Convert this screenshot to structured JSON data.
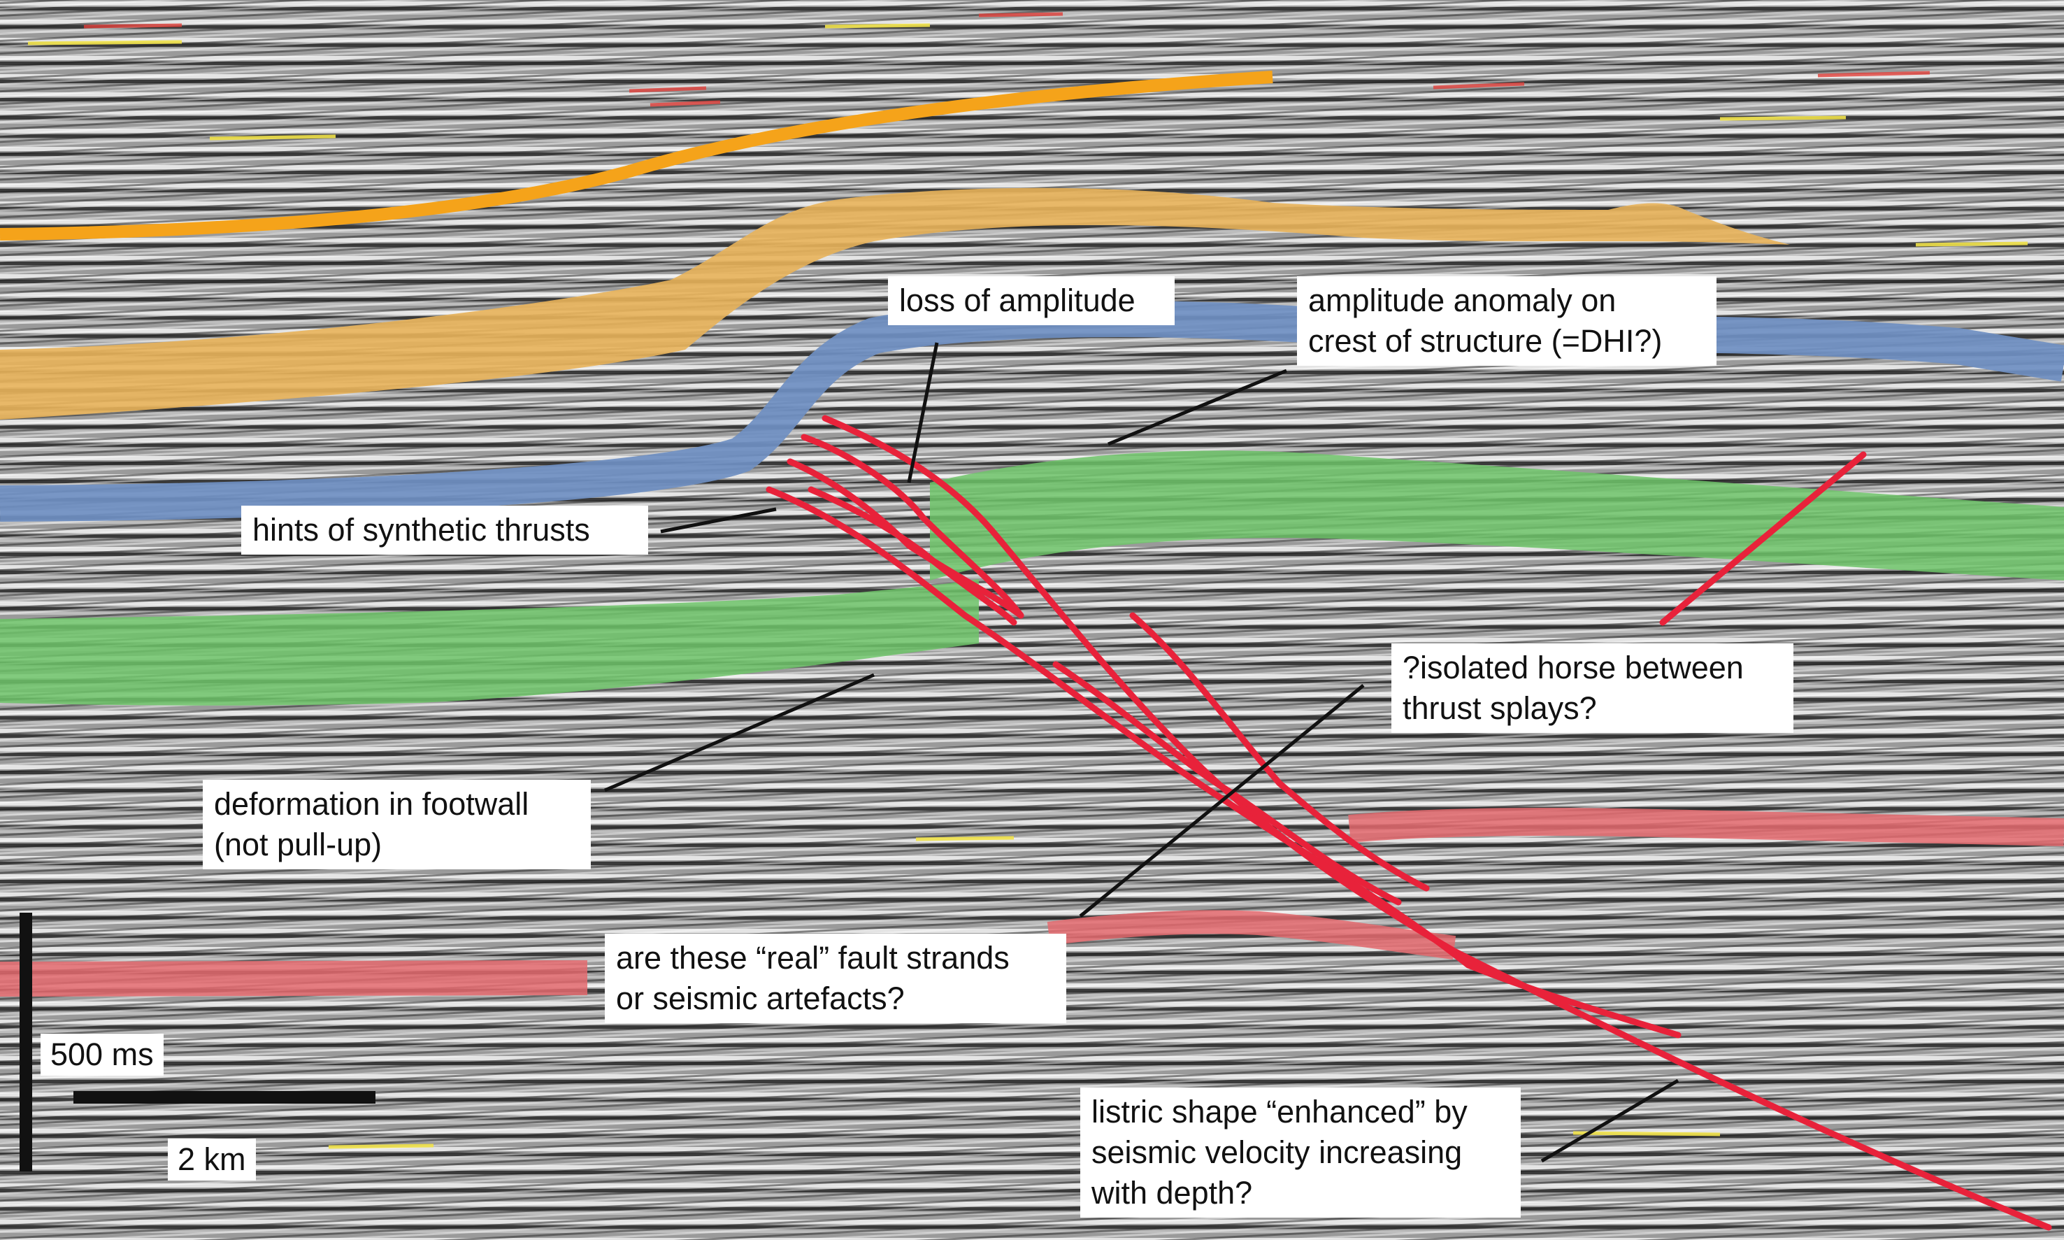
{
  "colors": {
    "horizon_orange_line": "#f5a31a",
    "horizon_orange_band": "#e8b35a",
    "horizon_blue": "#6f8fc2",
    "horizon_green": "#6fc46a",
    "horizon_pink": "#e46a6e",
    "fault_red": "#e8223a",
    "leader_line": "#111111",
    "seismic_background": "#8d8d8d"
  },
  "annotations": {
    "loss_of_amplitude": [
      "loss of amplitude"
    ],
    "amplitude_anomaly": [
      "amplitude anomaly on",
      "crest of structure (=DHI?)"
    ],
    "synthetic_thrusts": [
      "hints of synthetic thrusts"
    ],
    "isolated_horse": [
      "?isolated horse between",
      "thrust splays?"
    ],
    "footwall_deformation": [
      "deformation in footwall",
      "(not pull-up)"
    ],
    "fault_strands": [
      "are these “real” fault strands",
      "or seismic artefacts?"
    ],
    "listric_shape": [
      "listric shape “enhanced” by",
      "seismic velocity increasing",
      "with depth?"
    ]
  },
  "scale": {
    "vertical_label": "500 ms",
    "horizontal_label": "2 km"
  }
}
